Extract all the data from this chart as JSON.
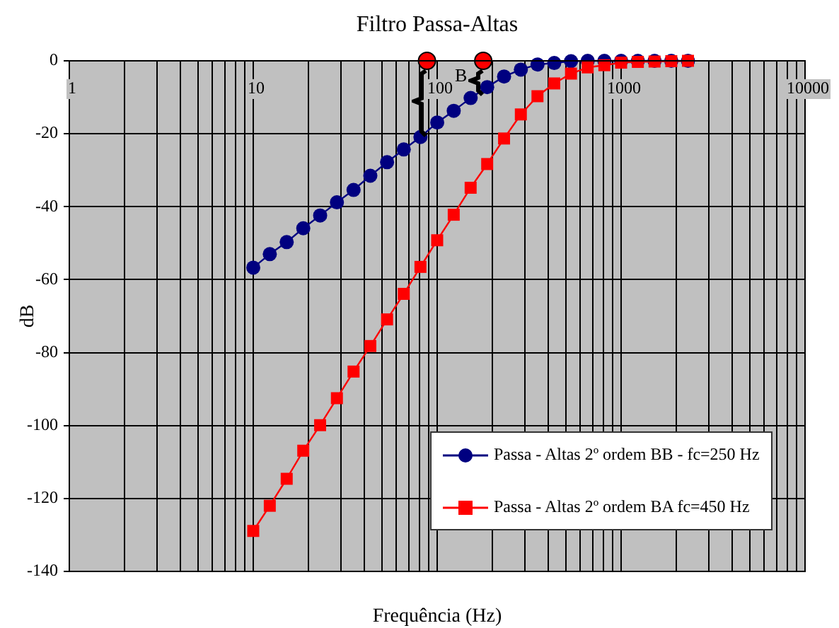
{
  "chart_data": {
    "type": "line",
    "title": "Filtro Passa-Altas",
    "xlabel": "Frequência (Hz)",
    "ylabel": "dB",
    "log": "x",
    "grid": true,
    "legend": "bottom right",
    "xlim": [
      1,
      10000
    ],
    "ylim": [
      -140,
      0
    ],
    "xticks": [
      1,
      {
        "value": 2,
        "label": null
      },
      {
        "value": 3,
        "label": null
      },
      {
        "value": 4,
        "label": null
      },
      {
        "value": 5,
        "label": null
      },
      {
        "value": 6,
        "label": null
      },
      {
        "value": 7,
        "label": null
      },
      {
        "value": 8,
        "label": null
      },
      {
        "value": 9,
        "label": null
      },
      10,
      {
        "value": 20,
        "label": null
      },
      {
        "value": 30,
        "label": null
      },
      {
        "value": 40,
        "label": null
      },
      {
        "value": 50,
        "label": null
      },
      {
        "value": 60,
        "label": null
      },
      {
        "value": 70,
        "label": null
      },
      {
        "value": 80,
        "label": null
      },
      {
        "value": 90,
        "label": null
      },
      100,
      {
        "value": 200,
        "label": null
      },
      {
        "value": 300,
        "label": null
      },
      {
        "value": 400,
        "label": null
      },
      {
        "value": 500,
        "label": null
      },
      {
        "value": 600,
        "label": null
      },
      {
        "value": 700,
        "label": null
      },
      {
        "value": 800,
        "label": null
      },
      {
        "value": 900,
        "label": null
      },
      1000,
      {
        "value": 2000,
        "label": null
      },
      {
        "value": 3000,
        "label": null
      },
      {
        "value": 4000,
        "label": null
      },
      {
        "value": 5000,
        "label": null
      },
      {
        "value": 6000,
        "label": null
      },
      {
        "value": 7000,
        "label": null
      },
      {
        "value": 8000,
        "label": null
      },
      {
        "value": 9000,
        "label": null
      },
      10000
    ],
    "yticks": [
      -140,
      -120,
      -100,
      -80,
      -60,
      -40,
      -20,
      0
    ],
    "x": [
      10,
      12.3,
      15.2,
      18.7,
      23.1,
      28.5,
      35.1,
      43.3,
      53.4,
      65.8,
      81.1,
      100,
      123,
      152,
      187,
      231,
      285,
      351,
      433,
      534,
      658,
      811,
      1000,
      1233,
      1520,
      1874,
      2310
    ],
    "series": [
      {
        "name": "Passa - Altas 2º ordem BB - fc=250 Hz",
        "color": "#000080",
        "marker": "circle",
        "values": [
          -56.7,
          -53,
          -49.7,
          -45.9,
          -42.4,
          -38.8,
          -35.4,
          -31.5,
          -27.8,
          -24.3,
          -20.9,
          -16.9,
          -13.7,
          -10.2,
          -7.2,
          -4.3,
          -2.4,
          -1,
          -0.6,
          -0.1,
          0,
          0,
          0,
          0,
          0,
          0,
          0
        ]
      },
      {
        "name": "Passa - Altas 2º ordem BA fc=450 Hz",
        "color": "#ff0000",
        "marker": "square",
        "values": [
          -128.9,
          -122,
          -114.6,
          -106.9,
          -99.9,
          -92.5,
          -85.2,
          -78.2,
          -70.9,
          -63.9,
          -56.5,
          -49.2,
          -42.2,
          -34.8,
          -28.3,
          -21.3,
          -14.7,
          -9.7,
          -6.2,
          -3.5,
          -1.8,
          -1.2,
          -0.5,
          -0.3,
          -0.2,
          -0.1,
          0
        ]
      },
      {
        "type": "scatter",
        "color": "#ff0000",
        "marker": "circle",
        "x": [
          88,
          178
        ],
        "values": [
          0,
          0
        ]
      }
    ],
    "annotations": [
      "B"
    ]
  }
}
